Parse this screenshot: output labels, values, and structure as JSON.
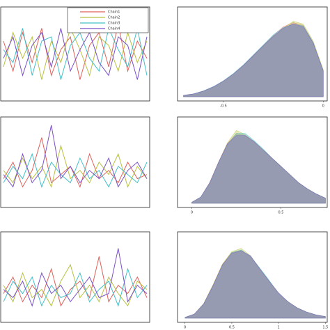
{
  "chart_data": [
    {
      "type": "line",
      "ylim": [
        -1,
        1
      ],
      "legend": "upper right",
      "series": [
        {
          "name": "Chain1",
          "color": "#e0605a",
          "values": [
            0.3,
            -0.4,
            0.5,
            -0.2,
            0.6,
            -0.5,
            0.1,
            0.4,
            -0.6,
            0.2,
            0.5,
            -0.3,
            0.7,
            -0.4,
            0.3,
            -0.1
          ]
        },
        {
          "name": "Chain2",
          "color": "#b8c040",
          "values": [
            -0.3,
            0.5,
            -0.1,
            0.4,
            -0.6,
            0.3,
            -0.2,
            0.6,
            0.1,
            -0.5,
            0.4,
            0.2,
            -0.4,
            0.5,
            -0.2,
            0.3
          ]
        },
        {
          "name": "Chain3",
          "color": "#40c0c8",
          "values": [
            0.1,
            -0.2,
            0.6,
            -0.5,
            0.3,
            0.4,
            -0.6,
            0.2,
            0.5,
            -0.1,
            -0.4,
            0.6,
            0.1,
            -0.3,
            0.6,
            -0.5
          ]
        },
        {
          "name": "Chain4",
          "color": "#7a50c8",
          "values": [
            -0.1,
            0.4,
            -0.5,
            0.2,
            0.5,
            -0.3,
            0.6,
            -0.4,
            0.1,
            0.5,
            -0.2,
            -0.5,
            0.4,
            0.2,
            -0.6,
            0.4
          ]
        }
      ]
    },
    {
      "type": "area",
      "xlim": [
        -0.73,
        0.02
      ],
      "ylim": [
        0,
        3
      ],
      "xticks": [
        -0.5,
        0.0
      ],
      "x": [
        -0.7,
        -0.65,
        -0.6,
        -0.55,
        -0.5,
        -0.45,
        -0.4,
        -0.35,
        -0.3,
        -0.25,
        -0.2,
        -0.15,
        -0.1,
        -0.05,
        0.0
      ],
      "series": [
        {
          "color": "#e0605a",
          "values": [
            0.05,
            0.1,
            0.2,
            0.35,
            0.55,
            0.8,
            1.1,
            1.45,
            1.8,
            2.15,
            2.45,
            2.6,
            2.5,
            1.9,
            0.9
          ]
        },
        {
          "color": "#b8c040",
          "values": [
            0.05,
            0.1,
            0.2,
            0.34,
            0.53,
            0.78,
            1.08,
            1.42,
            1.78,
            2.1,
            2.4,
            2.65,
            2.55,
            1.95,
            0.95
          ]
        },
        {
          "color": "#40c0c8",
          "values": [
            0.05,
            0.1,
            0.21,
            0.36,
            0.56,
            0.82,
            1.12,
            1.47,
            1.82,
            2.17,
            2.42,
            2.55,
            2.48,
            1.9,
            0.9
          ]
        },
        {
          "color": "#7a50c8",
          "values": [
            0.05,
            0.1,
            0.2,
            0.35,
            0.55,
            0.8,
            1.1,
            1.44,
            1.79,
            2.12,
            2.4,
            2.55,
            2.45,
            1.88,
            0.92
          ]
        }
      ]
    },
    {
      "type": "line",
      "ylim": [
        0,
        1
      ],
      "series": [
        {
          "color": "#e0605a",
          "values": [
            0.3,
            0.5,
            0.2,
            0.4,
            0.8,
            0.25,
            0.35,
            0.45,
            0.2,
            0.6,
            0.3,
            0.4,
            0.25,
            0.5,
            0.3,
            0.35
          ]
        },
        {
          "color": "#b8c040",
          "values": [
            0.4,
            0.25,
            0.55,
            0.3,
            0.45,
            0.2,
            0.7,
            0.3,
            0.4,
            0.25,
            0.5,
            0.35,
            0.6,
            0.2,
            0.45,
            0.3
          ]
        },
        {
          "color": "#40c0c8",
          "values": [
            0.25,
            0.45,
            0.3,
            0.6,
            0.2,
            0.5,
            0.35,
            0.25,
            0.55,
            0.3,
            0.4,
            0.2,
            0.45,
            0.35,
            0.25,
            0.5
          ]
        },
        {
          "color": "#7a50c8",
          "values": [
            0.35,
            0.2,
            0.6,
            0.25,
            0.4,
            0.95,
            0.3,
            0.45,
            0.25,
            0.4,
            0.3,
            0.55,
            0.2,
            0.4,
            0.5,
            0.3
          ]
        }
      ]
    },
    {
      "type": "area",
      "xlim": [
        -0.08,
        0.76
      ],
      "ylim": [
        0,
        4
      ],
      "xticks": [
        0.0,
        0.5
      ],
      "x": [
        0,
        0.05,
        0.1,
        0.15,
        0.2,
        0.25,
        0.3,
        0.35,
        0.4,
        0.45,
        0.5,
        0.55,
        0.6,
        0.65,
        0.7,
        0.75
      ],
      "series": [
        {
          "color": "#e0605a",
          "values": [
            0.05,
            0.3,
            1.0,
            2.0,
            2.9,
            3.4,
            3.3,
            3.0,
            2.6,
            2.2,
            1.8,
            1.4,
            1.0,
            0.7,
            0.45,
            0.25
          ]
        },
        {
          "color": "#b8c040",
          "values": [
            0.05,
            0.3,
            1.0,
            2.0,
            2.95,
            3.55,
            3.35,
            3.0,
            2.6,
            2.2,
            1.8,
            1.4,
            1.0,
            0.7,
            0.45,
            0.25
          ]
        },
        {
          "color": "#40c0c8",
          "values": [
            0.05,
            0.3,
            0.95,
            1.95,
            2.85,
            3.4,
            3.4,
            3.05,
            2.65,
            2.2,
            1.8,
            1.4,
            1.0,
            0.7,
            0.45,
            0.25
          ]
        },
        {
          "color": "#7a50c8",
          "values": [
            0.05,
            0.3,
            1.0,
            2.0,
            2.9,
            3.3,
            3.3,
            3.0,
            2.6,
            2.2,
            1.8,
            1.4,
            1.0,
            0.7,
            0.45,
            0.25
          ]
        }
      ]
    },
    {
      "type": "line",
      "ylim": [
        0,
        2
      ],
      "series": [
        {
          "color": "#e0605a",
          "values": [
            0.6,
            1.0,
            0.4,
            0.8,
            0.5,
            1.2,
            0.3,
            0.7,
            0.9,
            0.5,
            1.5,
            0.4,
            0.8,
            0.6,
            1.0,
            0.5
          ]
        },
        {
          "color": "#b8c040",
          "values": [
            0.8,
            0.4,
            1.1,
            0.5,
            0.7,
            0.3,
            0.9,
            1.3,
            0.5,
            0.8,
            0.4,
            1.0,
            0.6,
            0.3,
            0.9,
            0.7
          ]
        },
        {
          "color": "#40c0c8",
          "values": [
            0.4,
            0.9,
            0.6,
            1.0,
            0.3,
            0.8,
            0.5,
            0.6,
            1.1,
            0.4,
            0.7,
            0.9,
            0.3,
            1.2,
            0.5,
            0.8
          ]
        },
        {
          "color": "#7a50c8",
          "values": [
            0.7,
            0.5,
            0.9,
            0.3,
            1.1,
            0.6,
            0.8,
            0.4,
            0.7,
            1.0,
            0.5,
            0.6,
            1.7,
            0.4,
            0.8,
            0.6
          ]
        }
      ]
    },
    {
      "type": "area",
      "xlim": [
        -0.08,
        1.52
      ],
      "ylim": [
        0,
        2
      ],
      "xticks": [
        0.0,
        0.5,
        1.0,
        1.5
      ],
      "x": [
        0,
        0.1,
        0.2,
        0.3,
        0.4,
        0.5,
        0.6,
        0.7,
        0.8,
        0.9,
        1.0,
        1.1,
        1.2,
        1.3,
        1.4,
        1.5
      ],
      "series": [
        {
          "color": "#e0605a",
          "values": [
            0.02,
            0.1,
            0.35,
            0.8,
            1.3,
            1.6,
            1.65,
            1.5,
            1.2,
            0.9,
            0.6,
            0.4,
            0.25,
            0.15,
            0.08,
            0.04
          ]
        },
        {
          "color": "#b8c040",
          "values": [
            0.02,
            0.1,
            0.36,
            0.82,
            1.32,
            1.62,
            1.7,
            1.52,
            1.2,
            0.9,
            0.6,
            0.4,
            0.25,
            0.15,
            0.08,
            0.04
          ]
        },
        {
          "color": "#40c0c8",
          "values": [
            0.02,
            0.1,
            0.34,
            0.78,
            1.28,
            1.6,
            1.66,
            1.5,
            1.22,
            0.92,
            0.6,
            0.4,
            0.25,
            0.15,
            0.08,
            0.04
          ]
        },
        {
          "color": "#7a50c8",
          "values": [
            0.02,
            0.1,
            0.35,
            0.8,
            1.3,
            1.58,
            1.64,
            1.52,
            1.2,
            0.9,
            0.62,
            0.4,
            0.25,
            0.15,
            0.08,
            0.04
          ]
        }
      ]
    }
  ]
}
